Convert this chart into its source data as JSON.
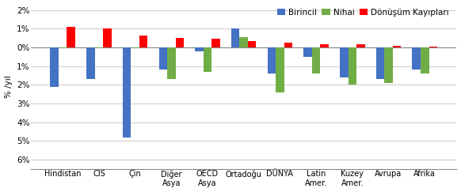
{
  "categories": [
    "Hindistan",
    "CIS",
    "Çin",
    "Diğer\nAsya",
    "OECD\nAsya",
    "Ortadoğu",
    "DÜNYA",
    "Latin\nAmer.",
    "Kuzey\nAmer.",
    "Avrupa",
    "Afrika"
  ],
  "birincil": [
    -2.1,
    -1.7,
    -4.8,
    -1.2,
    -0.2,
    1.0,
    -1.4,
    -0.5,
    -1.6,
    -1.7,
    -1.2
  ],
  "nihai": [
    -0.05,
    -0.05,
    -0.05,
    -1.7,
    -1.3,
    0.55,
    -2.4,
    -1.4,
    -2.0,
    -1.9,
    -1.4
  ],
  "donusum": [
    1.1,
    1.0,
    0.65,
    0.5,
    0.45,
    0.35,
    0.25,
    0.15,
    0.15,
    0.1,
    0.05
  ],
  "legend_labels": [
    "Birincil",
    "Nihai",
    "Dönüşüm Kayıpları"
  ],
  "bar_colors": [
    "#4472C4",
    "#70AD47",
    "#FF0000"
  ],
  "ylabel": "% /yıl",
  "ylim": [
    -6.5,
    2.3
  ],
  "yticks": [
    2,
    1,
    0,
    -1,
    -2,
    -3,
    -4,
    -5,
    -6
  ],
  "ytick_labels": [
    "2%",
    "1%",
    "0%",
    "1%",
    "2%",
    "3%",
    "4%",
    "5%",
    "6%"
  ],
  "background_color": "#ffffff",
  "grid_color": "#d0d0d0"
}
